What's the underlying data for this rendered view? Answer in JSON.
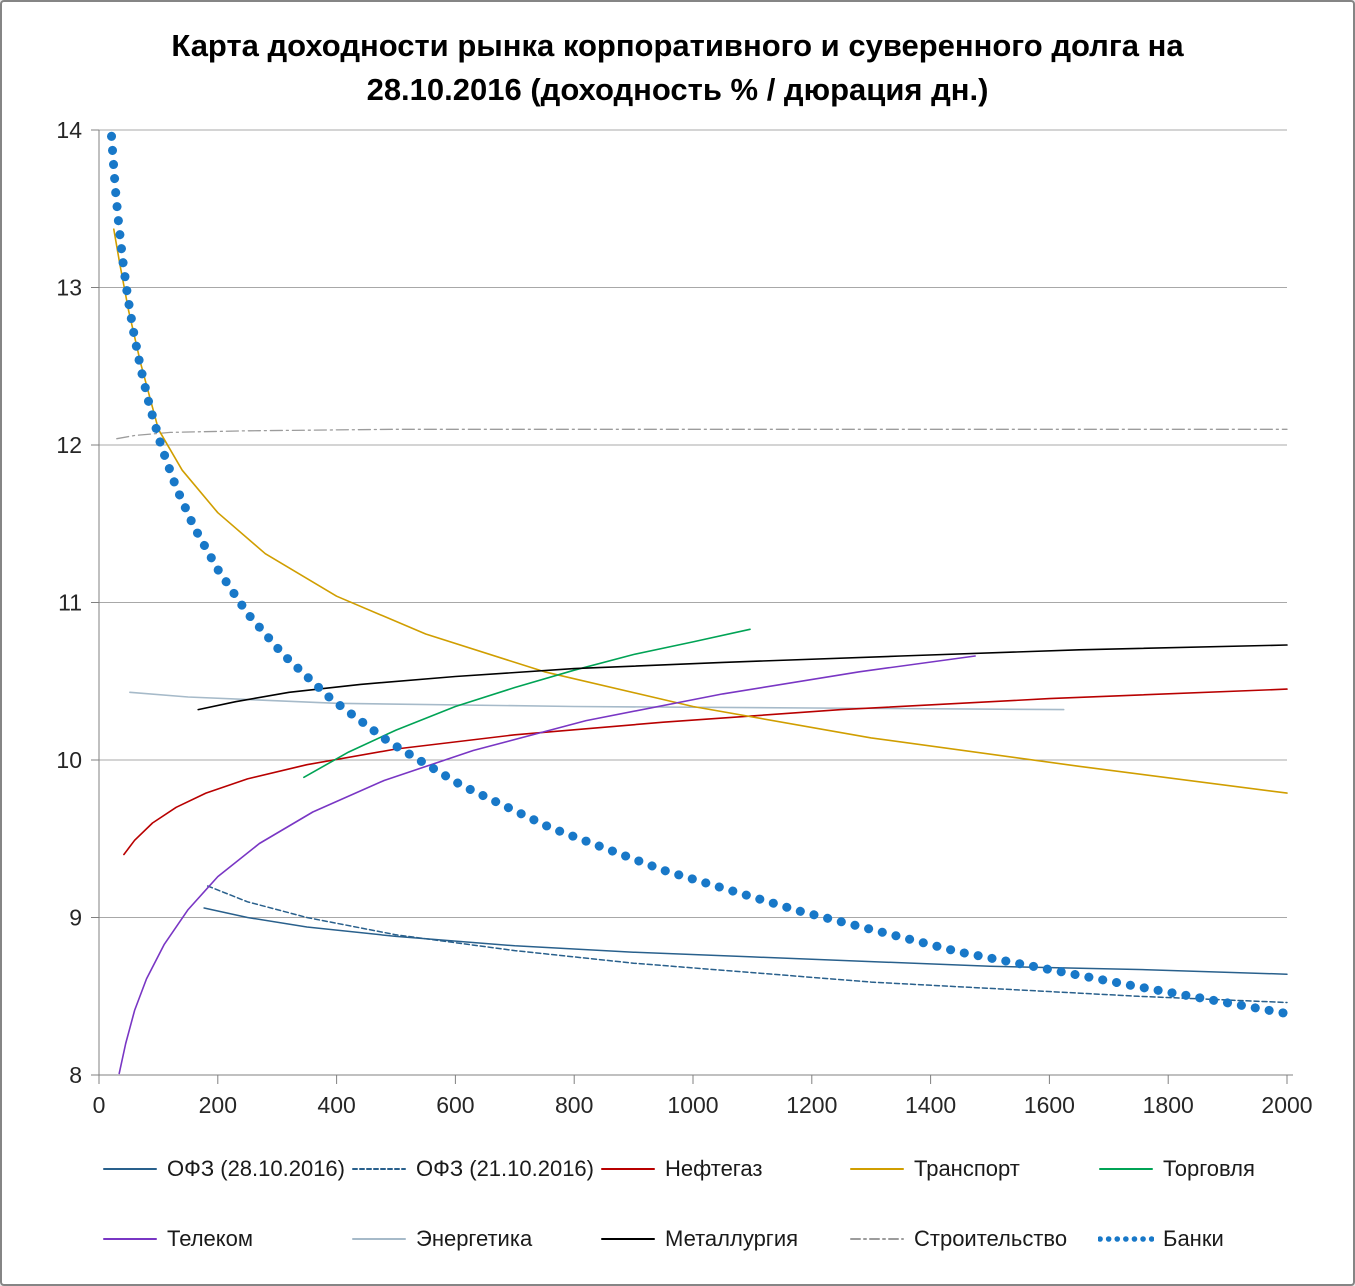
{
  "title": {
    "line1": "Карта доходности рынка корпоративного и суверенного долга на",
    "line2": "28.10.2016 (доходность % / дюрация дн.)"
  },
  "chart_data": {
    "type": "line",
    "title": "Карта доходности рынка корпоративного и суверенного долга на 28.10.2016 (доходность % / дюрация дн.)",
    "xlabel": "",
    "ylabel": "",
    "xlim": [
      0,
      2000
    ],
    "ylim": [
      8,
      14
    ],
    "x_ticks": [
      0,
      200,
      400,
      600,
      800,
      1000,
      1200,
      1400,
      1600,
      1800,
      2000
    ],
    "y_ticks": [
      8,
      9,
      10,
      11,
      12,
      13,
      14
    ],
    "grid": "horizontal",
    "legend_position": "bottom",
    "colors": {
      "grid": "#a8a8a8",
      "axis": "#808080",
      "text": "#262626"
    },
    "series": [
      {
        "id": "ofz-28-10-2016",
        "name": "ОФЗ (28.10.2016)",
        "color": "#29608c",
        "dash": "solid",
        "width": 1.5,
        "points": [
          [
            177,
            9.06
          ],
          [
            250,
            9.0
          ],
          [
            350,
            8.94
          ],
          [
            500,
            8.88
          ],
          [
            700,
            8.82
          ],
          [
            900,
            8.78
          ],
          [
            1100,
            8.75
          ],
          [
            1300,
            8.72
          ],
          [
            1500,
            8.69
          ],
          [
            1750,
            8.67
          ],
          [
            2000,
            8.64
          ]
        ]
      },
      {
        "id": "ofz-21-10-2016",
        "name": "ОФЗ (21.10.2016)",
        "color": "#29608c",
        "dash": "dash",
        "width": 1.5,
        "points": [
          [
            183,
            9.2
          ],
          [
            250,
            9.1
          ],
          [
            350,
            9.0
          ],
          [
            500,
            8.89
          ],
          [
            700,
            8.79
          ],
          [
            900,
            8.71
          ],
          [
            1100,
            8.65
          ],
          [
            1300,
            8.59
          ],
          [
            1500,
            8.55
          ],
          [
            1750,
            8.5
          ],
          [
            2000,
            8.46
          ]
        ]
      },
      {
        "id": "neftegaz",
        "name": "Нефтегаз",
        "color": "#b80000",
        "dash": "solid",
        "width": 1.6,
        "points": [
          [
            42,
            9.4
          ],
          [
            60,
            9.49
          ],
          [
            90,
            9.6
          ],
          [
            130,
            9.7
          ],
          [
            180,
            9.79
          ],
          [
            250,
            9.88
          ],
          [
            350,
            9.97
          ],
          [
            500,
            10.07
          ],
          [
            700,
            10.16
          ],
          [
            950,
            10.24
          ],
          [
            1250,
            10.32
          ],
          [
            1600,
            10.39
          ],
          [
            2000,
            10.45
          ]
        ]
      },
      {
        "id": "transport",
        "name": "Транспорт",
        "color": "#d09e00",
        "dash": "solid",
        "width": 1.6,
        "points": [
          [
            25,
            13.37
          ],
          [
            35,
            13.15
          ],
          [
            50,
            12.85
          ],
          [
            70,
            12.52
          ],
          [
            100,
            12.1
          ],
          [
            140,
            11.84
          ],
          [
            200,
            11.57
          ],
          [
            280,
            11.31
          ],
          [
            400,
            11.04
          ],
          [
            550,
            10.8
          ],
          [
            750,
            10.56
          ],
          [
            1000,
            10.34
          ],
          [
            1300,
            10.14
          ],
          [
            1650,
            9.96
          ],
          [
            2000,
            9.79
          ]
        ]
      },
      {
        "id": "torgovlya",
        "name": "Торговля",
        "color": "#00a355",
        "dash": "solid",
        "width": 1.6,
        "points": [
          [
            345,
            9.89
          ],
          [
            420,
            10.05
          ],
          [
            500,
            10.19
          ],
          [
            600,
            10.34
          ],
          [
            700,
            10.46
          ],
          [
            800,
            10.57
          ],
          [
            900,
            10.67
          ],
          [
            1000,
            10.75
          ],
          [
            1096,
            10.83
          ]
        ]
      },
      {
        "id": "telekom",
        "name": "Телеком",
        "color": "#7936c4",
        "dash": "solid",
        "width": 1.6,
        "points": [
          [
            34,
            8.01
          ],
          [
            45,
            8.2
          ],
          [
            60,
            8.41
          ],
          [
            80,
            8.61
          ],
          [
            110,
            8.83
          ],
          [
            150,
            9.05
          ],
          [
            200,
            9.26
          ],
          [
            270,
            9.47
          ],
          [
            360,
            9.67
          ],
          [
            480,
            9.87
          ],
          [
            630,
            10.06
          ],
          [
            820,
            10.25
          ],
          [
            1050,
            10.42
          ],
          [
            1280,
            10.56
          ],
          [
            1475,
            10.66
          ]
        ]
      },
      {
        "id": "energetika",
        "name": "Энергетика",
        "color": "#a6bac9",
        "dash": "solid",
        "width": 1.6,
        "points": [
          [
            52,
            10.43
          ],
          [
            150,
            10.4
          ],
          [
            400,
            10.36
          ],
          [
            800,
            10.34
          ],
          [
            1200,
            10.33
          ],
          [
            1624,
            10.32
          ]
        ]
      },
      {
        "id": "metallurgiya",
        "name": "Металлургия",
        "color": "#000000",
        "dash": "solid",
        "width": 1.6,
        "points": [
          [
            167,
            10.32
          ],
          [
            230,
            10.37
          ],
          [
            320,
            10.43
          ],
          [
            440,
            10.48
          ],
          [
            600,
            10.53
          ],
          [
            800,
            10.58
          ],
          [
            1050,
            10.62
          ],
          [
            1350,
            10.66
          ],
          [
            1650,
            10.7
          ],
          [
            2000,
            10.73
          ]
        ]
      },
      {
        "id": "stroitelstvo",
        "name": "Строительство",
        "color": "#9c9c9c",
        "dash": "dashdot",
        "width": 1.3,
        "points": [
          [
            30,
            12.04
          ],
          [
            60,
            12.06
          ],
          [
            120,
            12.08
          ],
          [
            250,
            12.09
          ],
          [
            500,
            12.1
          ],
          [
            1000,
            12.1
          ],
          [
            1500,
            12.1
          ],
          [
            2000,
            12.1
          ]
        ]
      },
      {
        "id": "banki",
        "name": "Банки",
        "color": "#1878c8",
        "dash": "dot",
        "width": 9,
        "points": [
          [
            21,
            13.96
          ],
          [
            24,
            13.8
          ],
          [
            28,
            13.61
          ],
          [
            33,
            13.41
          ],
          [
            40,
            13.17
          ],
          [
            48,
            12.95
          ],
          [
            58,
            12.72
          ],
          [
            70,
            12.49
          ],
          [
            85,
            12.25
          ],
          [
            105,
            11.99
          ],
          [
            130,
            11.73
          ],
          [
            160,
            11.48
          ],
          [
            200,
            11.21
          ],
          [
            250,
            10.93
          ],
          [
            310,
            10.67
          ],
          [
            390,
            10.39
          ],
          [
            490,
            10.11
          ],
          [
            610,
            9.84
          ],
          [
            760,
            9.57
          ],
          [
            950,
            9.3
          ],
          [
            1180,
            9.04
          ],
          [
            1450,
            8.78
          ],
          [
            1750,
            8.56
          ],
          [
            2000,
            8.39
          ]
        ]
      }
    ]
  },
  "legend": {
    "rows": [
      [
        0,
        1,
        2,
        3,
        4
      ],
      [
        5,
        6,
        7,
        8,
        9
      ]
    ]
  }
}
